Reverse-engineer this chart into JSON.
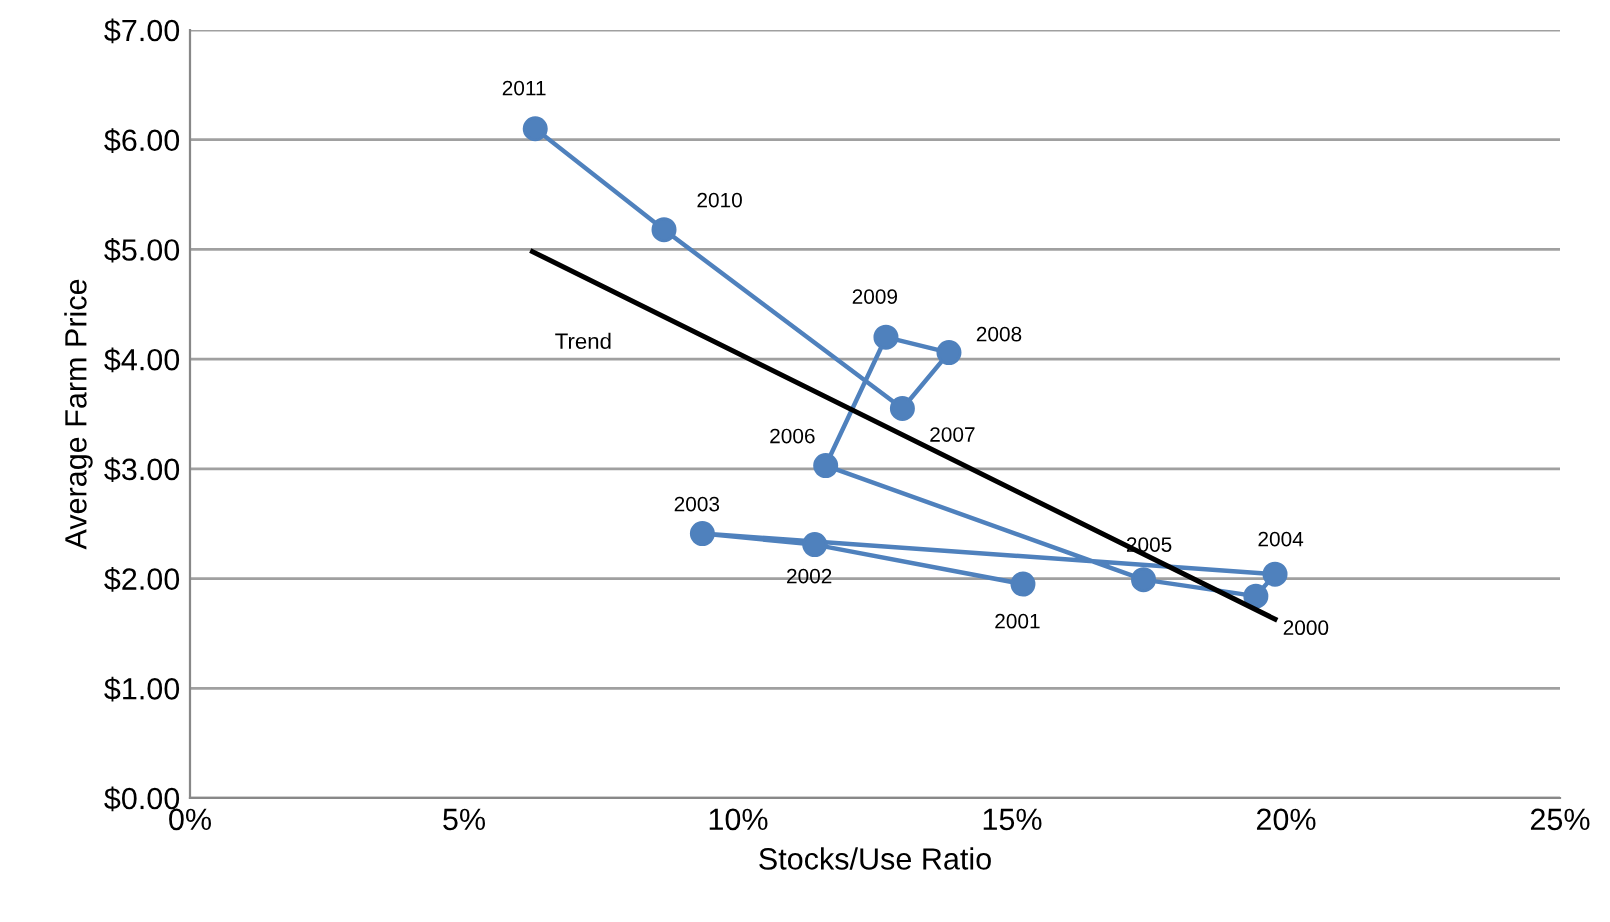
{
  "chart_data": {
    "type": "line",
    "xlabel": "Stocks/Use Ratio",
    "ylabel": "Average Farm Price",
    "xlim": [
      0,
      25
    ],
    "xticks": [
      {
        "value": 0,
        "label": "0%"
      },
      {
        "value": 5,
        "label": "5%"
      },
      {
        "value": 10,
        "label": "10%"
      },
      {
        "value": 15,
        "label": "15%"
      },
      {
        "value": 20,
        "label": "20%"
      },
      {
        "value": 25,
        "label": "25%"
      }
    ],
    "ylim": [
      0,
      7
    ],
    "yticks": [
      {
        "value": 0,
        "label": "$0.00"
      },
      {
        "value": 1,
        "label": "$1.00"
      },
      {
        "value": 2,
        "label": "$2.00"
      },
      {
        "value": 3,
        "label": "$3.00"
      },
      {
        "value": 4,
        "label": "$4.00"
      },
      {
        "value": 5,
        "label": "$5.00"
      },
      {
        "value": 6,
        "label": "$6.00"
      },
      {
        "value": 7,
        "label": "$7.00"
      }
    ],
    "grid": "y",
    "marker": "circle",
    "line_style": "solid",
    "series": [
      {
        "color": "#4f81bd",
        "x": [
          6.3,
          8.65,
          13.0,
          13.85,
          12.7,
          11.6,
          17.4,
          19.45,
          19.8,
          9.35,
          11.4,
          15.2
        ],
        "values": [
          6.1,
          5.18,
          3.55,
          4.06,
          4.2,
          3.03,
          1.99,
          1.84,
          2.04,
          2.41,
          2.31,
          1.95
        ]
      },
      {
        "name": "Trend",
        "color": "#000000",
        "marker": "none",
        "x": [
          6.25,
          19.8
        ],
        "values": [
          4.98,
          1.63
        ]
      }
    ],
    "annotations": [
      {
        "text": "2011",
        "x": 6.3,
        "y": 6.1
      },
      {
        "text": "2010",
        "x": 8.65,
        "y": 5.18
      },
      {
        "text": "2007",
        "x": 13.0,
        "y": 3.55
      },
      {
        "text": "2008",
        "x": 13.85,
        "y": 4.06
      },
      {
        "text": "2009",
        "x": 12.7,
        "y": 4.2
      },
      {
        "text": "2006",
        "x": 11.6,
        "y": 3.03
      },
      {
        "text": "2005",
        "x": 17.4,
        "y": 1.99
      },
      {
        "text": "2000",
        "x": 19.45,
        "y": 1.84
      },
      {
        "text": "2004",
        "x": 19.8,
        "y": 2.04
      },
      {
        "text": "2003",
        "x": 9.35,
        "y": 2.41
      },
      {
        "text": "2002",
        "x": 11.4,
        "y": 2.31
      },
      {
        "text": "2001",
        "x": 15.2,
        "y": 1.95
      }
    ]
  }
}
